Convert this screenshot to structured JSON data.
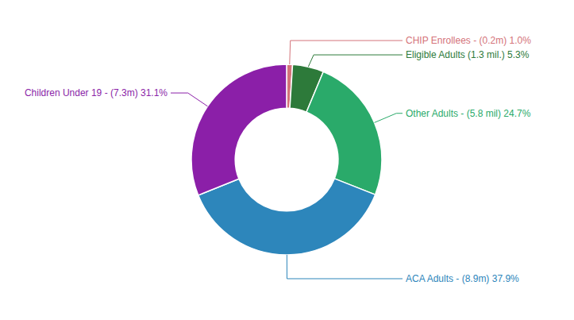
{
  "chart_data": {
    "type": "pie",
    "categories": [
      "CHIP Enrollees - (0.2m) 1.0%",
      "Eligible Adults (1.3 mil.) 5.3%",
      "Other Adults - (5.8 mil) 24.7%",
      "ACA Adults - (8.9m) 37.9%",
      "Children Under 19 - (7.3m) 31.1%"
    ],
    "values": [
      1.0,
      5.3,
      24.7,
      37.9,
      31.1
    ],
    "colors": [
      "#d4737a",
      "#2d7a3a",
      "#2aaa6a",
      "#2d86bb",
      "#8b1fa8"
    ]
  }
}
